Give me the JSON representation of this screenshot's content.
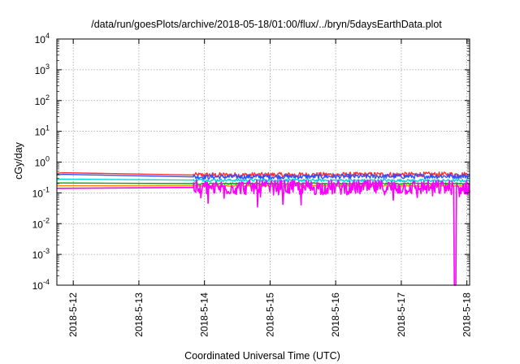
{
  "chart_data": {
    "type": "line",
    "title": "/data/run/goesPlots/archive/2018-05-18/01:00/flux/../bryn/5daysEarthData.plot",
    "xlabel": "Coordinated Universal Time (UTC)",
    "ylabel": "cGy/day",
    "y_scale": "log",
    "ylim": [
      0.0001,
      10000
    ],
    "y_ticks": [
      {
        "value": 0.0001,
        "base": "10",
        "exp": "-4"
      },
      {
        "value": 0.001,
        "base": "10",
        "exp": "-3"
      },
      {
        "value": 0.01,
        "base": "10",
        "exp": "-2"
      },
      {
        "value": 0.1,
        "base": "10",
        "exp": "-1"
      },
      {
        "value": 1,
        "base": "10",
        "exp": "0"
      },
      {
        "value": 10,
        "base": "10",
        "exp": "1"
      },
      {
        "value": 100,
        "base": "10",
        "exp": "2"
      },
      {
        "value": 1000,
        "base": "10",
        "exp": "3"
      },
      {
        "value": 10000,
        "base": "10",
        "exp": "4"
      }
    ],
    "xlim": [
      "2018-05-11T18:00",
      "2018-05-18T01:00"
    ],
    "x_ticks": [
      {
        "value": "2018-05-12T00:00",
        "label": "2018-5-12"
      },
      {
        "value": "2018-05-13T00:00",
        "label": "2018-5-13"
      },
      {
        "value": "2018-05-14T00:00",
        "label": "2018-5-14"
      },
      {
        "value": "2018-05-15T00:00",
        "label": "2018-5-15"
      },
      {
        "value": "2018-05-16T00:00",
        "label": "2018-5-16"
      },
      {
        "value": "2018-05-17T00:00",
        "label": "2018-5-17"
      },
      {
        "value": "2018-05-18T00:00",
        "label": "2018-5-18"
      }
    ],
    "grid": true,
    "legend": "none",
    "data_gap": [
      "2018-05-11T20:00",
      "2018-05-13T20:00"
    ],
    "series": [
      {
        "color": "#ff3030",
        "x": [
          "2018-05-11T18:00",
          "2018-05-11T20:00",
          "2018-05-13T20:00",
          "2018-05-18T01:00"
        ],
        "y": [
          0.43,
          0.45,
          0.38,
          0.4
        ],
        "noisy_after_gap": true,
        "noise": 0.15
      },
      {
        "color": "#3050ff",
        "x": [
          "2018-05-11T18:00",
          "2018-05-11T20:00",
          "2018-05-13T20:00",
          "2018-05-18T01:00"
        ],
        "y": [
          0.38,
          0.4,
          0.33,
          0.35
        ],
        "noisy_after_gap": true,
        "noise": 0.15
      },
      {
        "color": "#00d8d8",
        "x": [
          "2018-05-11T18:00",
          "2018-05-11T20:00",
          "2018-05-13T20:00",
          "2018-05-18T01:00"
        ],
        "y": [
          0.27,
          0.28,
          0.26,
          0.25
        ],
        "noisy_after_gap": true,
        "noise": 0.08
      },
      {
        "color": "#00aa00",
        "x": [
          "2018-05-11T18:00",
          "2018-05-11T20:00",
          "2018-05-13T20:00",
          "2018-05-18T01:00"
        ],
        "y": [
          0.21,
          0.21,
          0.2,
          0.2
        ],
        "noisy_after_gap": true,
        "noise": 0.05
      },
      {
        "color": "#ff8800",
        "x": [
          "2018-05-11T18:00",
          "2018-05-11T20:00",
          "2018-05-13T20:00",
          "2018-05-18T01:00"
        ],
        "y": [
          0.17,
          0.17,
          0.17,
          0.17
        ],
        "noisy_after_gap": true,
        "noise": 0.03
      },
      {
        "color": "#ff00ff",
        "x": [
          "2018-05-11T18:00",
          "2018-05-11T20:00",
          "2018-05-13T20:00",
          "2018-05-18T01:00"
        ],
        "y": [
          0.14,
          0.14,
          0.15,
          0.15
        ],
        "noisy_after_gap": true,
        "noise": 0.35
      }
    ],
    "magenta_dropout": {
      "x": "2018-05-17T19:40",
      "y": 0.0001
    }
  }
}
